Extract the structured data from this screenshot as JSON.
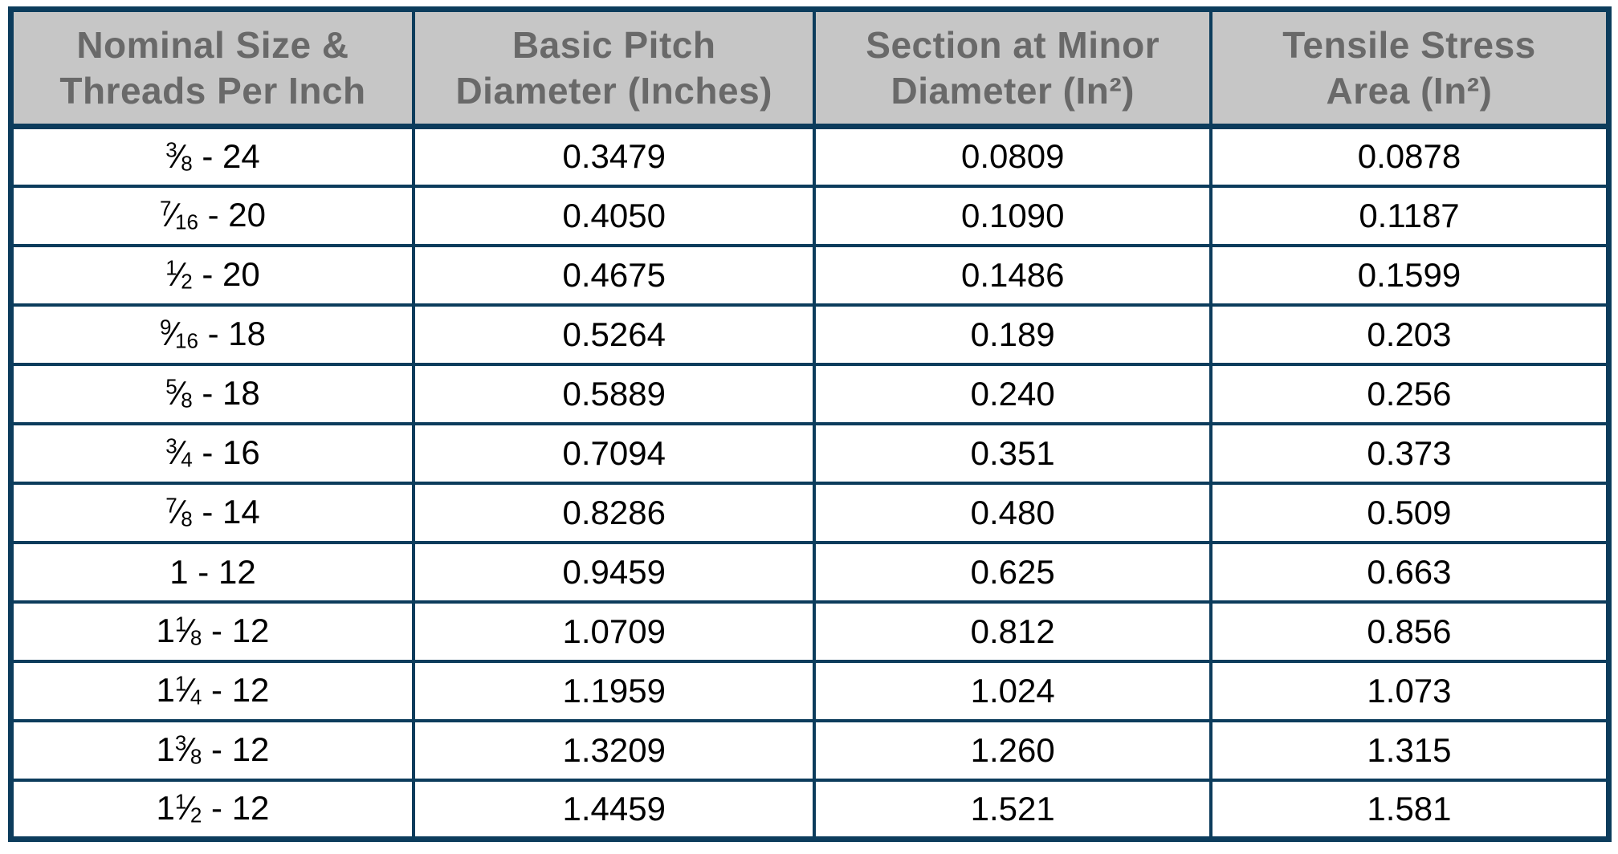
{
  "chart_data": {
    "type": "table",
    "title": "Thread tensile stress area table",
    "columns": [
      "Nominal Size & Threads Per Inch",
      "Basic Pitch Diameter (Inches)",
      "Section at Minor Diameter (In²)",
      "Tensile Stress Area (In²)"
    ],
    "rows": [
      [
        "3/8 - 24",
        0.3479,
        0.0809,
        0.0878
      ],
      [
        "7/16 - 20",
        0.405,
        0.109,
        0.1187
      ],
      [
        "1/2 - 20",
        0.4675,
        0.1486,
        0.1599
      ],
      [
        "9/16 - 18",
        0.5264,
        0.189,
        0.203
      ],
      [
        "5/8 - 18",
        0.5889,
        0.24,
        0.256
      ],
      [
        "3/4 - 16",
        0.7094,
        0.351,
        0.373
      ],
      [
        "7/8 - 14",
        0.8286,
        0.48,
        0.509
      ],
      [
        "1 - 12",
        0.9459,
        0.625,
        0.663
      ],
      [
        "1 1/8 - 12",
        1.0709,
        0.812,
        0.856
      ],
      [
        "1 1/4 - 12",
        1.1959,
        1.024,
        1.073
      ],
      [
        "1 3/8 - 12",
        1.3209,
        1.26,
        1.315
      ],
      [
        "1 1/2 - 12",
        1.4459,
        1.521,
        1.581
      ]
    ]
  },
  "table": {
    "headers": [
      {
        "line1": "Nominal Size &",
        "line2": "Threads Per Inch"
      },
      {
        "line1": "Basic Pitch",
        "line2": "Diameter (Inches)"
      },
      {
        "line1": "Section at Minor",
        "line2": "Diameter (In²)"
      },
      {
        "line1": "Tensile Stress",
        "line2": "Area (In²)"
      }
    ],
    "rows": [
      {
        "size": {
          "whole": "",
          "num": "3",
          "den": "8"
        },
        "tpi": "24",
        "pitch": "0.3479",
        "minor": "0.0809",
        "tensile": "0.0878"
      },
      {
        "size": {
          "whole": "",
          "num": "7",
          "den": "16"
        },
        "tpi": "20",
        "pitch": "0.4050",
        "minor": "0.1090",
        "tensile": "0.1187"
      },
      {
        "size": {
          "whole": "",
          "num": "1",
          "den": "2"
        },
        "tpi": "20",
        "pitch": "0.4675",
        "minor": "0.1486",
        "tensile": "0.1599"
      },
      {
        "size": {
          "whole": "",
          "num": "9",
          "den": "16"
        },
        "tpi": "18",
        "pitch": "0.5264",
        "minor": "0.189",
        "tensile": "0.203"
      },
      {
        "size": {
          "whole": "",
          "num": "5",
          "den": "8"
        },
        "tpi": "18",
        "pitch": "0.5889",
        "minor": "0.240",
        "tensile": "0.256"
      },
      {
        "size": {
          "whole": "",
          "num": "3",
          "den": "4"
        },
        "tpi": "16",
        "pitch": "0.7094",
        "minor": "0.351",
        "tensile": "0.373"
      },
      {
        "size": {
          "whole": "",
          "num": "7",
          "den": "8"
        },
        "tpi": "14",
        "pitch": "0.8286",
        "minor": "0.480",
        "tensile": "0.509"
      },
      {
        "size": {
          "whole": "1",
          "num": "",
          "den": ""
        },
        "tpi": "12",
        "pitch": "0.9459",
        "minor": "0.625",
        "tensile": "0.663"
      },
      {
        "size": {
          "whole": "1",
          "num": "1",
          "den": "8"
        },
        "tpi": "12",
        "pitch": "1.0709",
        "minor": "0.812",
        "tensile": "0.856"
      },
      {
        "size": {
          "whole": "1",
          "num": "1",
          "den": "4"
        },
        "tpi": "12",
        "pitch": "1.1959",
        "minor": "1.024",
        "tensile": "1.073"
      },
      {
        "size": {
          "whole": "1",
          "num": "3",
          "den": "8"
        },
        "tpi": "12",
        "pitch": "1.3209",
        "minor": "1.260",
        "tensile": "1.315"
      },
      {
        "size": {
          "whole": "1",
          "num": "1",
          "den": "2"
        },
        "tpi": "12",
        "pitch": "1.4459",
        "minor": "1.521",
        "tensile": "1.581"
      }
    ]
  },
  "colors": {
    "border": "#0c3c5c",
    "header_bg": "#c6c6c6",
    "header_text": "#696969",
    "cell_text": "#000000"
  }
}
